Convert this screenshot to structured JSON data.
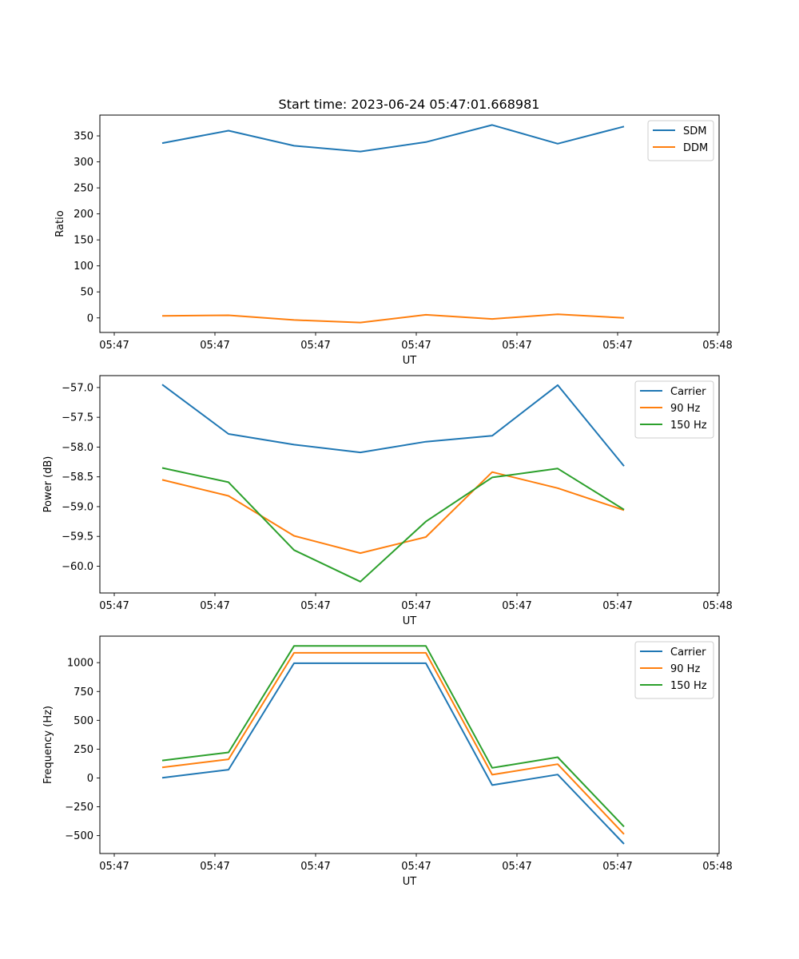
{
  "figure": {
    "title": "Start time: 2023-06-24 05:47:01.668981"
  },
  "chart_data": [
    {
      "type": "line",
      "xlabel": "UT",
      "ylabel": "Ratio",
      "x_tick_labels": [
        "05:47",
        "05:47",
        "05:47",
        "05:47",
        "05:47",
        "05:47",
        "05:48"
      ],
      "ylim": [
        -28,
        390
      ],
      "yticks": [
        0,
        50,
        100,
        150,
        200,
        250,
        300,
        350
      ],
      "y_tick_labels": [
        "0",
        "50",
        "100",
        "150",
        "200",
        "250",
        "300",
        "350"
      ],
      "legend_position": "top-right",
      "series": [
        {
          "name": "SDM",
          "color": "#1f77b4",
          "values": [
            336,
            360,
            331,
            320,
            338,
            371,
            335,
            368
          ]
        },
        {
          "name": "DDM",
          "color": "#ff7f0e",
          "values": [
            4,
            5,
            -4,
            -9,
            6,
            -2,
            7,
            0
          ]
        }
      ]
    },
    {
      "type": "line",
      "xlabel": "UT",
      "ylabel": "Power (dB)",
      "x_tick_labels": [
        "05:47",
        "05:47",
        "05:47",
        "05:47",
        "05:47",
        "05:47",
        "05:48"
      ],
      "ylim": [
        -60.45,
        -56.8
      ],
      "yticks": [
        -60.0,
        -59.5,
        -59.0,
        -58.5,
        -58.0,
        -57.5,
        -57.0
      ],
      "y_tick_labels": [
        "−60.0",
        "−59.5",
        "−59.0",
        "−58.5",
        "−58.0",
        "−57.5",
        "−57.0"
      ],
      "legend_position": "top-right",
      "series": [
        {
          "name": "Carrier",
          "color": "#1f77b4",
          "values": [
            -56.95,
            -57.78,
            -57.96,
            -58.09,
            -57.91,
            -57.81,
            -56.96,
            -58.32
          ]
        },
        {
          "name": "90 Hz",
          "color": "#ff7f0e",
          "values": [
            -58.55,
            -58.82,
            -59.49,
            -59.78,
            -59.51,
            -58.42,
            -58.69,
            -59.06
          ]
        },
        {
          "name": "150 Hz",
          "color": "#2ca02c",
          "values": [
            -58.35,
            -58.59,
            -59.73,
            -60.26,
            -59.25,
            -58.51,
            -58.36,
            -59.05
          ]
        }
      ]
    },
    {
      "type": "line",
      "xlabel": "UT",
      "ylabel": "Frequency (Hz)",
      "x_tick_labels": [
        "05:47",
        "05:47",
        "05:47",
        "05:47",
        "05:47",
        "05:47",
        "05:48"
      ],
      "ylim": [
        -655,
        1230
      ],
      "yticks": [
        -500,
        -250,
        0,
        250,
        500,
        750,
        1000
      ],
      "y_tick_labels": [
        "−500",
        "−250",
        "0",
        "250",
        "500",
        "750",
        "1000"
      ],
      "legend_position": "top-right",
      "series": [
        {
          "name": "Carrier",
          "color": "#1f77b4",
          "values": [
            2,
            72,
            995,
            995,
            995,
            -62,
            30,
            -572
          ]
        },
        {
          "name": "90 Hz",
          "color": "#ff7f0e",
          "values": [
            92,
            162,
            1085,
            1085,
            1085,
            28,
            120,
            -487
          ]
        },
        {
          "name": "150 Hz",
          "color": "#2ca02c",
          "values": [
            152,
            222,
            1145,
            1145,
            1145,
            88,
            180,
            -422
          ]
        }
      ]
    }
  ]
}
